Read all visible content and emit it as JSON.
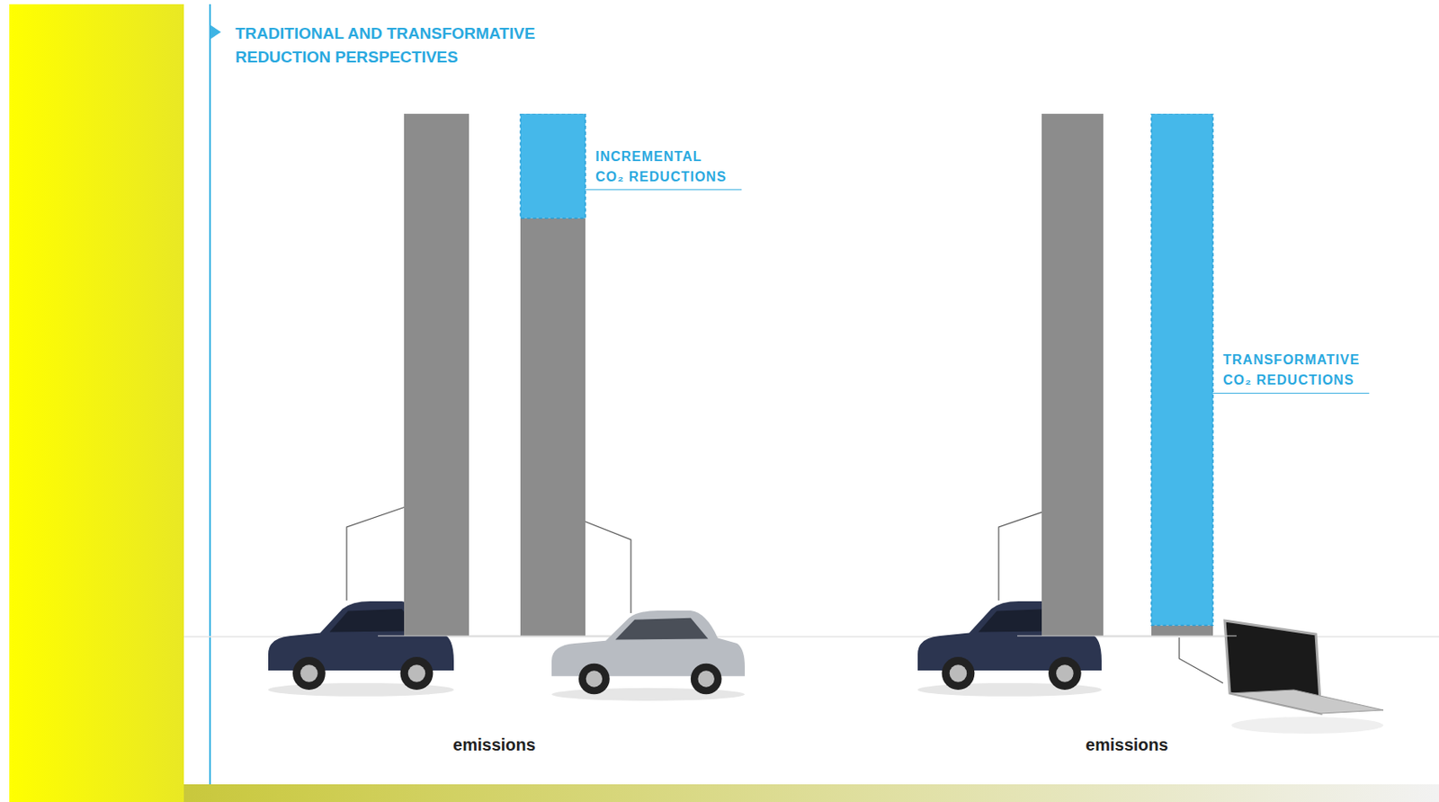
{
  "chart_data": [
    {
      "type": "bar",
      "title": "TRADITIONAL AND TRANSFORMATIVE REDUCTION PERSPECTIVES",
      "x_label": "emissions",
      "categories": [
        null,
        null
      ],
      "stacked": true,
      "tick_labels": false,
      "ylim": [
        0,
        100
      ],
      "series": [
        {
          "color": "#8c8c8c",
          "values": [
            100,
            80
          ]
        },
        {
          "color": "#45b8ea",
          "line_style": "dashed",
          "values": [
            null,
            20
          ]
        }
      ],
      "annotation": "INCREMENTAL CO₂ REDUCTIONS"
    },
    {
      "type": "bar",
      "x_label": "emissions",
      "categories": [
        null,
        null
      ],
      "stacked": true,
      "tick_labels": false,
      "ylim": [
        0,
        100
      ],
      "series": [
        {
          "color": "#8c8c8c",
          "values": [
            100,
            2
          ]
        },
        {
          "color": "#45b8ea",
          "line_style": "dashed",
          "values": [
            null,
            98
          ]
        }
      ],
      "annotation": "TRANSFORMATIVE CO₂ REDUCTIONS"
    }
  ]
}
